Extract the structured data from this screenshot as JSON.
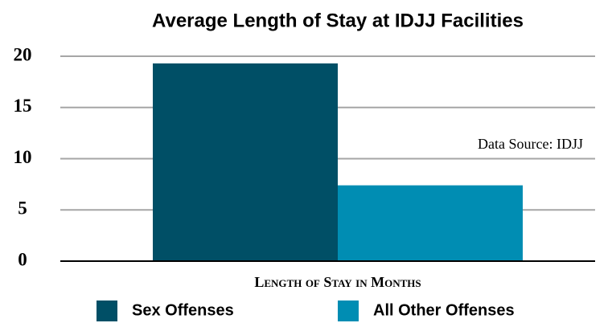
{
  "chart_data": {
    "type": "bar",
    "title": "Average Length of Stay at IDJJ Facilities",
    "x_label": "Length of Stay in Months",
    "annotation": "Data Source: IDJJ",
    "categories": [
      null
    ],
    "series": [
      {
        "name": "Sex Offenses",
        "color": "#004f66",
        "values": [
          19.3
        ]
      },
      {
        "name": "All Other Offenses",
        "color": "#008db3",
        "values": [
          7.4
        ]
      }
    ],
    "ylim": [
      0,
      20
    ],
    "yticks": [
      0,
      5,
      10,
      15,
      20
    ],
    "grid": true,
    "legend": "bottom"
  }
}
